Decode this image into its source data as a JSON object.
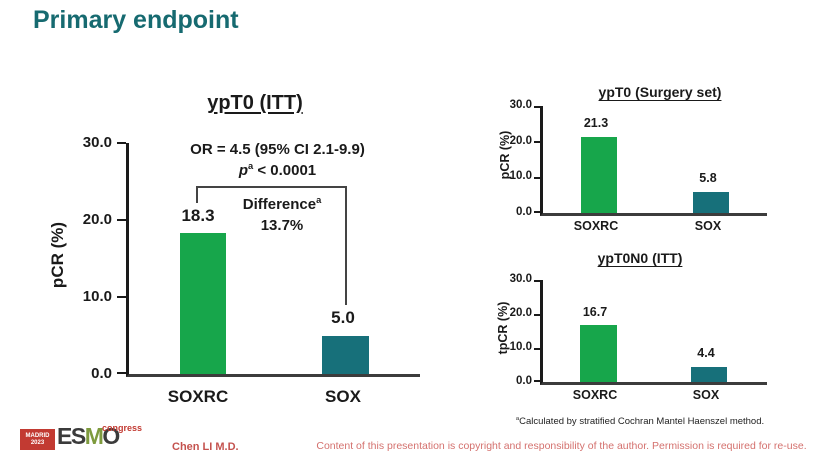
{
  "slide": {
    "title": "Primary endpoint",
    "presenter": "Chen LI M.D.",
    "copyright": "Content of this presentation is copyright and responsibility of the author. Permission is required for re-use.",
    "footnote": {
      "marker": "a",
      "text": "Calculated by stratified Cochran Mantel Haenszel method."
    }
  },
  "logo": {
    "city": "MADRID",
    "year": "2023",
    "org_es": "ES",
    "org_m": "M",
    "org_o": "O",
    "event": "congress"
  },
  "colors": {
    "title_teal": "#166A70",
    "bar_green": "#17A64B",
    "bar_teal": "#17707A",
    "logo_red": "#C23A32",
    "footer_red": "#D4716E"
  },
  "chart_data": [
    {
      "type": "bar",
      "title": "ypT0 (ITT)",
      "ylabel": "pCR (%)",
      "categories": [
        "SOXRC",
        "SOX"
      ],
      "values": [
        18.3,
        5.0
      ],
      "value_labels": [
        "18.3",
        "5.0"
      ],
      "series_colors": [
        "#17A64B",
        "#17707A"
      ],
      "ylim": [
        0,
        30
      ],
      "yticks": [
        "30.0",
        "20.0",
        "10.0",
        "0.0"
      ],
      "grid": false,
      "annotations": {
        "or_line": "OR = 4.5 (95% CI 2.1-9.9)",
        "p_symbol": "p",
        "p_sup": "a",
        "p_rest": " < 0.0001",
        "difference_label": "Difference",
        "difference_sup": "a",
        "difference_value": "13.7%"
      }
    },
    {
      "type": "bar",
      "title": "ypT0 (Surgery set)",
      "ylabel": "pCR (%)",
      "categories": [
        "SOXRC",
        "SOX"
      ],
      "values": [
        21.3,
        5.8
      ],
      "value_labels": [
        "21.3",
        "5.8"
      ],
      "series_colors": [
        "#17A64B",
        "#17707A"
      ],
      "ylim": [
        0,
        30
      ],
      "yticks": [
        "30.0",
        "20.0",
        "10.0",
        "0.0"
      ],
      "grid": false
    },
    {
      "type": "bar",
      "title": "ypT0N0 (ITT)",
      "ylabel": "tpCR (%)",
      "categories": [
        "SOXRC",
        "SOX"
      ],
      "values": [
        16.7,
        4.4
      ],
      "value_labels": [
        "16.7",
        "4.4"
      ],
      "series_colors": [
        "#17A64B",
        "#17707A"
      ],
      "ylim": [
        0,
        30
      ],
      "yticks": [
        "30.0",
        "20.0",
        "10.0",
        "0.0"
      ],
      "grid": false
    }
  ]
}
